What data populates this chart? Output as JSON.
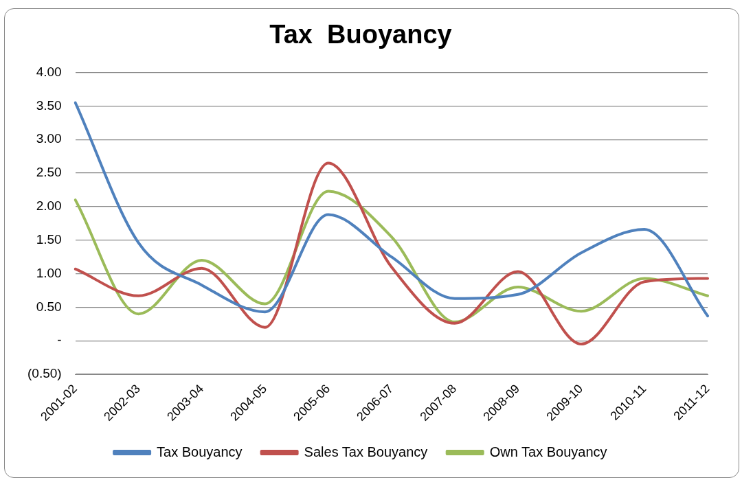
{
  "chart_data": {
    "type": "line",
    "title": "Tax  Buoyancy",
    "categories": [
      "2001-02",
      "2002-03",
      "2003-04",
      "2004-05",
      "2005-06",
      "2006-07",
      "2007-08",
      "2008-09",
      "2009-10",
      "2010-11",
      "2011-12"
    ],
    "series": [
      {
        "name": "Tax Bouyancy",
        "color": "#4f81bd",
        "values": [
          3.55,
          1.46,
          0.83,
          0.43,
          1.88,
          1.25,
          0.63,
          0.69,
          1.31,
          1.66,
          0.37
        ]
      },
      {
        "name": "Sales Tax Bouyancy",
        "color": "#c0504d",
        "values": [
          1.07,
          0.67,
          1.08,
          0.2,
          2.65,
          1.1,
          0.26,
          1.03,
          -0.05,
          0.88,
          0.93
        ]
      },
      {
        "name": "Own Tax Bouyancy",
        "color": "#9bbb59",
        "values": [
          2.1,
          0.4,
          1.2,
          0.55,
          2.23,
          1.55,
          0.28,
          0.8,
          0.44,
          0.93,
          0.67
        ]
      }
    ],
    "ylim": [
      -0.5,
      4
    ],
    "yticks": [
      {
        "value": -0.5,
        "label": "(0.50)"
      },
      {
        "value": 0,
        "label": "-"
      },
      {
        "value": 0.5,
        "label": "0.50"
      },
      {
        "value": 1,
        "label": "1.00"
      },
      {
        "value": 1.5,
        "label": "1.50"
      },
      {
        "value": 2,
        "label": "2.00"
      },
      {
        "value": 2.5,
        "label": "2.50"
      },
      {
        "value": 3,
        "label": "3.00"
      },
      {
        "value": 3.5,
        "label": "3.50"
      },
      {
        "value": 4,
        "label": "4.00"
      }
    ],
    "grid": "y",
    "legend": "bottom",
    "marker": "none",
    "line_style": "solid"
  }
}
